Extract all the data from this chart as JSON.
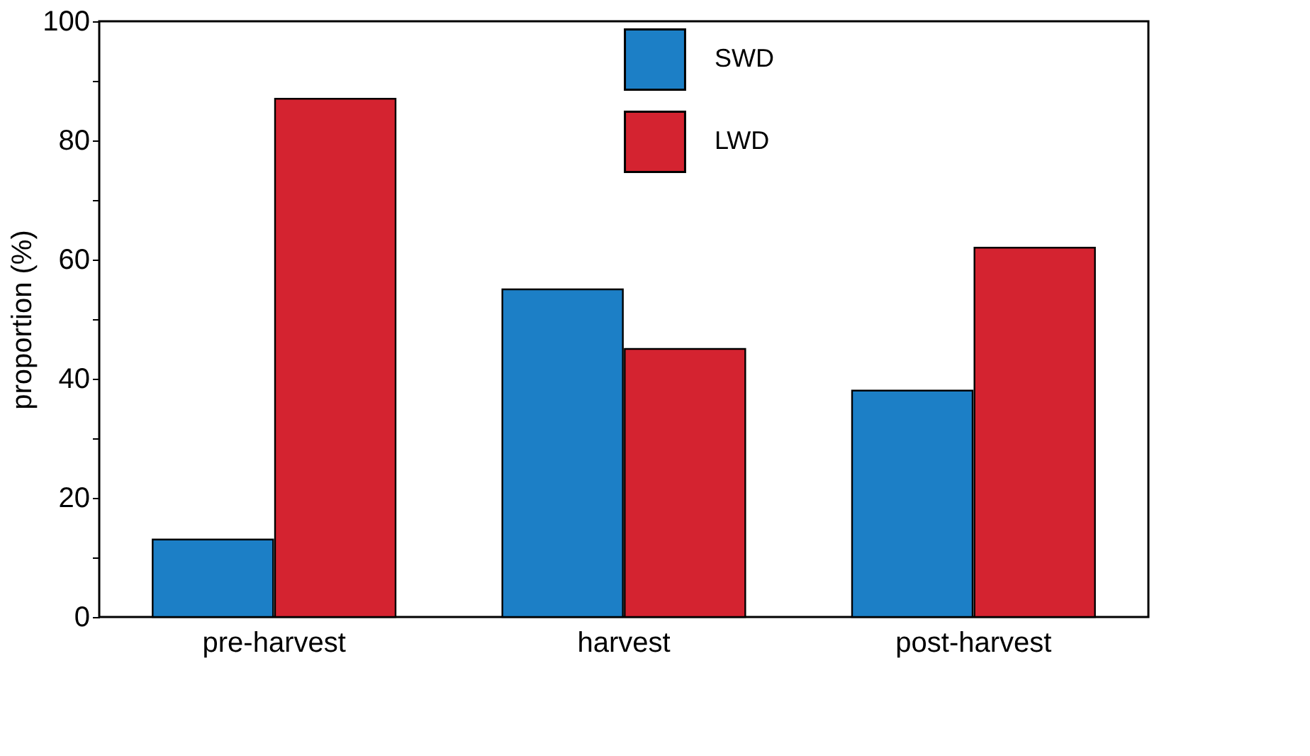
{
  "chart_data": {
    "type": "bar",
    "ylabel": "proportion (%)",
    "categories": [
      "pre-harvest",
      "harvest",
      "post-harvest"
    ],
    "series": [
      {
        "name": "SWD",
        "color": "#1c7fc6",
        "values": [
          13,
          55,
          38
        ]
      },
      {
        "name": "LWD",
        "color": "#d42330",
        "values": [
          87,
          45,
          62
        ]
      }
    ],
    "ylim": [
      0,
      100
    ],
    "yticks": [
      0,
      {
        "value": 10,
        "label": null
      },
      20,
      {
        "value": 30,
        "label": null
      },
      40,
      {
        "value": 50,
        "label": null
      },
      60,
      {
        "value": 70,
        "label": null
      },
      80,
      {
        "value": 90,
        "label": null
      },
      100
    ],
    "grid": false,
    "legend": "top"
  }
}
